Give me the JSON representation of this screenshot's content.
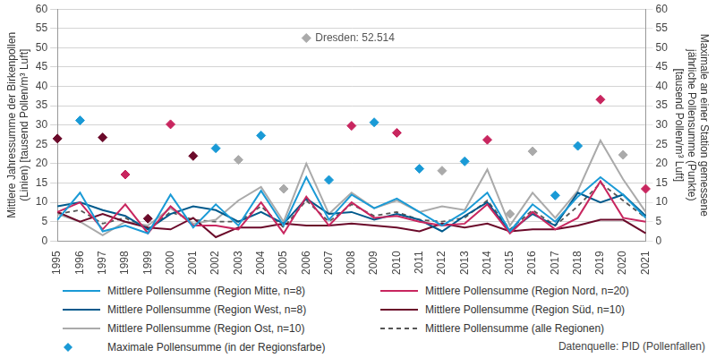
{
  "chart_data": {
    "type": "line",
    "categories": [
      "1995",
      "1996",
      "1997",
      "1998",
      "1999",
      "2000",
      "2001",
      "2002",
      "2003",
      "2004",
      "2005",
      "2006",
      "2007",
      "2008",
      "2009",
      "2010",
      "2011",
      "2012",
      "2013",
      "2014",
      "2015",
      "2016",
      "2017",
      "2018",
      "2019",
      "2020",
      "2021"
    ],
    "ylabel": [
      "Mittlere Jahressumme der Birkenpollen",
      "(Linien) [tausend Pollen/m³ Luft]"
    ],
    "y2label": [
      "Maximale an einer Station gemessene",
      "jährliche Pollensumme (Punkte)",
      "[tausend Pollen/m³ Luft]"
    ],
    "ylim": [
      0,
      60
    ],
    "yticks": [
      0,
      5,
      10,
      15,
      20,
      25,
      30,
      35,
      40,
      45,
      50,
      55,
      60
    ],
    "y2lim": [
      0,
      60
    ],
    "y2ticks": [
      0,
      5,
      10,
      15,
      20,
      25,
      30,
      35,
      40,
      45,
      50,
      55,
      60
    ],
    "grid": true,
    "legend": "bottom",
    "source": "Datenquelle: PID (Pollenfallen)",
    "annotations": [
      {
        "text": "Dresden: 52.514",
        "x": "2006",
        "y": 52.514,
        "axis": "y2"
      }
    ],
    "series": [
      {
        "name": "Mittlere Pollensumme (Region Mitte, n=8)",
        "type": "line",
        "color": "#1a9ad6",
        "values": [
          5.5,
          12.5,
          2.5,
          4,
          2,
          12,
          3.5,
          9.5,
          4,
          13,
          4,
          16.5,
          5.5,
          12,
          8.5,
          11,
          7.5,
          4,
          7.5,
          12.5,
          2.5,
          9.5,
          5,
          11.5,
          16.5,
          12,
          6
        ]
      },
      {
        "name": "Mittlere Pollensumme (Region Nord, n=20)",
        "type": "line",
        "color": "#c8265f",
        "values": [
          7.5,
          10,
          3,
          9.5,
          2,
          9,
          4,
          4,
          3,
          10,
          2,
          11.5,
          4,
          10,
          6,
          6.5,
          5,
          4,
          4.5,
          9.5,
          2,
          7.5,
          3,
          6,
          15.5,
          6,
          5
        ]
      },
      {
        "name": "Mittlere Pollensumme (Region West, n=8)",
        "type": "line",
        "color": "#005a8c",
        "values": [
          9,
          10,
          8,
          6.5,
          3,
          7,
          9,
          8,
          5,
          7.5,
          4.5,
          11,
          7,
          7.5,
          5.5,
          7,
          5.5,
          2.5,
          6.5,
          10,
          2.5,
          7,
          4,
          12.5,
          10,
          12,
          6.5
        ]
      },
      {
        "name": "Mittlere Pollensumme (Region Süd, n=10)",
        "type": "line",
        "color": "#6b0a2a",
        "values": [
          7.5,
          5,
          7,
          5,
          3.5,
          3,
          6,
          1,
          3.5,
          3.5,
          4.5,
          4,
          4,
          4.5,
          4,
          3.5,
          2.5,
          4.5,
          3.5,
          4.5,
          2.5,
          3,
          3,
          4,
          5.5,
          5.5,
          2
        ]
      },
      {
        "name": "Mittlere Pollensumme (Region Ost, n=10)",
        "type": "line",
        "color": "#aaaaaa",
        "values": [
          7,
          5,
          1.5,
          5,
          4,
          8.5,
          4.5,
          5.5,
          10.5,
          14,
          5,
          20,
          7,
          12.5,
          8.5,
          10.5,
          7.5,
          9,
          8,
          18.5,
          4,
          12.5,
          6,
          13,
          26,
          16,
          7.5
        ]
      },
      {
        "name": "Mittlere Pollensumme (alle Regionen)",
        "type": "line",
        "color": "#555555",
        "line_style": "dashed",
        "values": [
          7,
          8,
          4.5,
          6,
          3,
          7.5,
          5.5,
          5,
          5,
          9,
          3.5,
          10.5,
          5,
          9.5,
          6.5,
          7.5,
          5.5,
          5,
          6,
          10.5,
          3,
          8,
          4,
          9,
          15,
          10.5,
          6
        ]
      },
      {
        "name": "Maximale Pollensumme (in der Regionsfarbe)",
        "type": "scatter",
        "marker": "diamond",
        "axis": "y2",
        "color": "#1a9ad6",
        "values": [
          26.5,
          31.2,
          26.8,
          17.2,
          5.8,
          30.2,
          22,
          24,
          21,
          27.3,
          13.5,
          52.514,
          15.8,
          29.8,
          30.7,
          28,
          18.7,
          18.2,
          20.6,
          26.2,
          7,
          23.2,
          11.8,
          24.6,
          36.6,
          22.3,
          13.5
        ],
        "colors": [
          "#6b0a2a",
          "#1a9ad6",
          "#6b0a2a",
          "#c8265f",
          "#6b0a2a",
          "#c8265f",
          "#6b0a2a",
          "#1a9ad6",
          "#aaaaaa",
          "#1a9ad6",
          "#aaaaaa",
          "#aaaaaa",
          "#1a9ad6",
          "#c8265f",
          "#1a9ad6",
          "#c8265f",
          "#1a9ad6",
          "#aaaaaa",
          "#1a9ad6",
          "#c8265f",
          "#aaaaaa",
          "#aaaaaa",
          "#1a9ad6",
          "#1a9ad6",
          "#c8265f",
          "#aaaaaa",
          "#c8265f"
        ]
      }
    ]
  }
}
